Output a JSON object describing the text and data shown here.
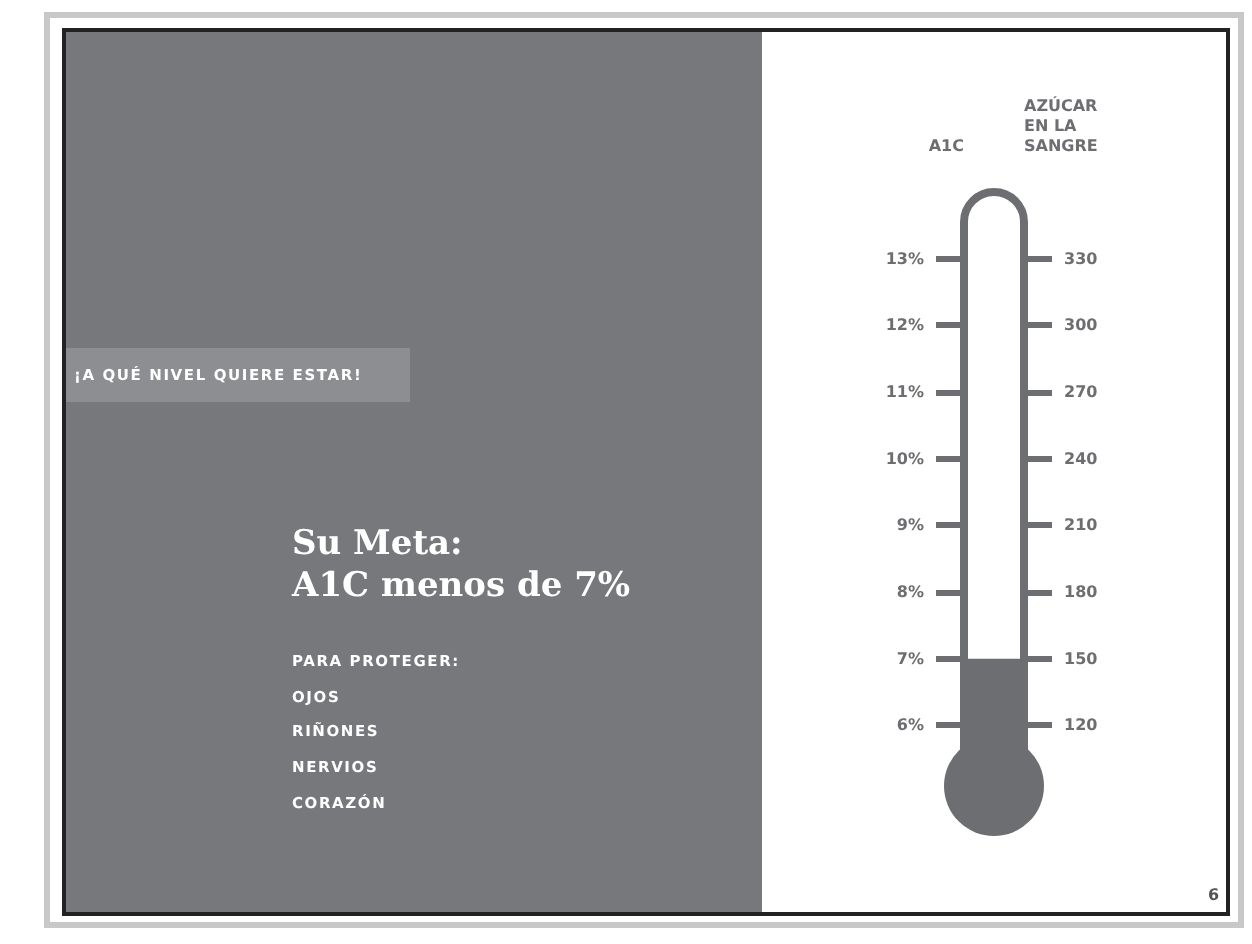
{
  "chart_data": {
    "type": "bar",
    "title": "Su Meta:",
    "subtitle": "A1C menos de 7%",
    "annotations": [
      "¡A QUÉ NIVEL QUIERE ESTAR!",
      "PARA PROTEGER:",
      "OJOS",
      "RIÑONES",
      "NERVIOS",
      "CORAZÓN",
      "6"
    ],
    "ylabel": "A1C",
    "y2label": "AZÚCAR EN LA SANGRE",
    "categories": [
      null
    ],
    "values": [
      7
    ],
    "color": "#6d6e71",
    "ylim": [
      5,
      14
    ],
    "yticks": [
      {
        "value": 6,
        "label": "6%"
      },
      {
        "value": 7,
        "label": "7%"
      },
      {
        "value": 8,
        "label": "8%"
      },
      {
        "value": 9,
        "label": "9%"
      },
      {
        "value": 10,
        "label": "10%"
      },
      {
        "value": 11,
        "label": "11%"
      },
      {
        "value": 12,
        "label": "12%"
      },
      {
        "value": 13,
        "label": "13%"
      }
    ],
    "y2lim": [
      90,
      360
    ],
    "y2ticks": [
      120,
      150,
      180,
      210,
      240,
      270,
      300,
      330
    ]
  }
}
